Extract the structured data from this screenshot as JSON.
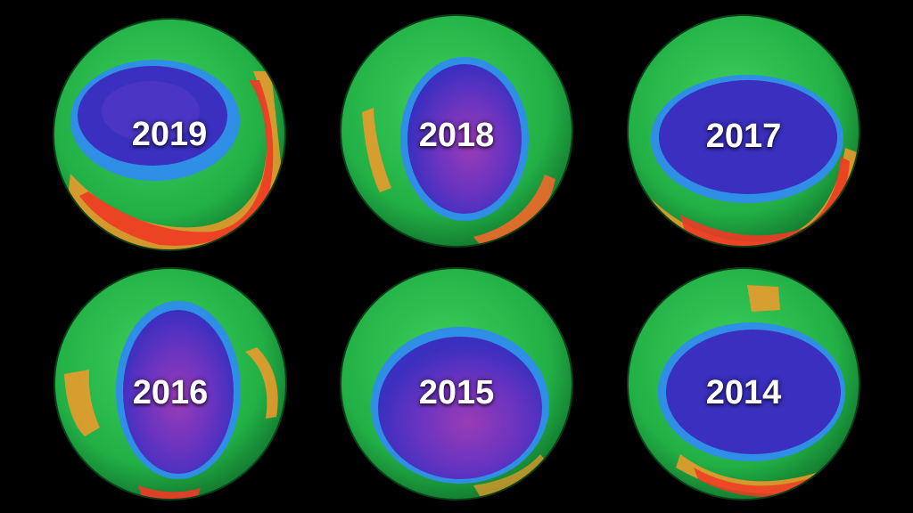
{
  "image": {
    "background_color": "#000000",
    "colors": {
      "healthy_ozone": "#26b94a",
      "ozone_hole": "#3a2fbf",
      "ozone_hole_core": "#8a3ab8",
      "hole_edge": "#2f8ee6",
      "high_ozone": "#f0402a",
      "high_ozone_mid": "#f59a2a"
    },
    "globes": [
      {
        "label": "2019"
      },
      {
        "label": "2018"
      },
      {
        "label": "2017"
      },
      {
        "label": "2016"
      },
      {
        "label": "2015"
      },
      {
        "label": "2014"
      }
    ]
  }
}
